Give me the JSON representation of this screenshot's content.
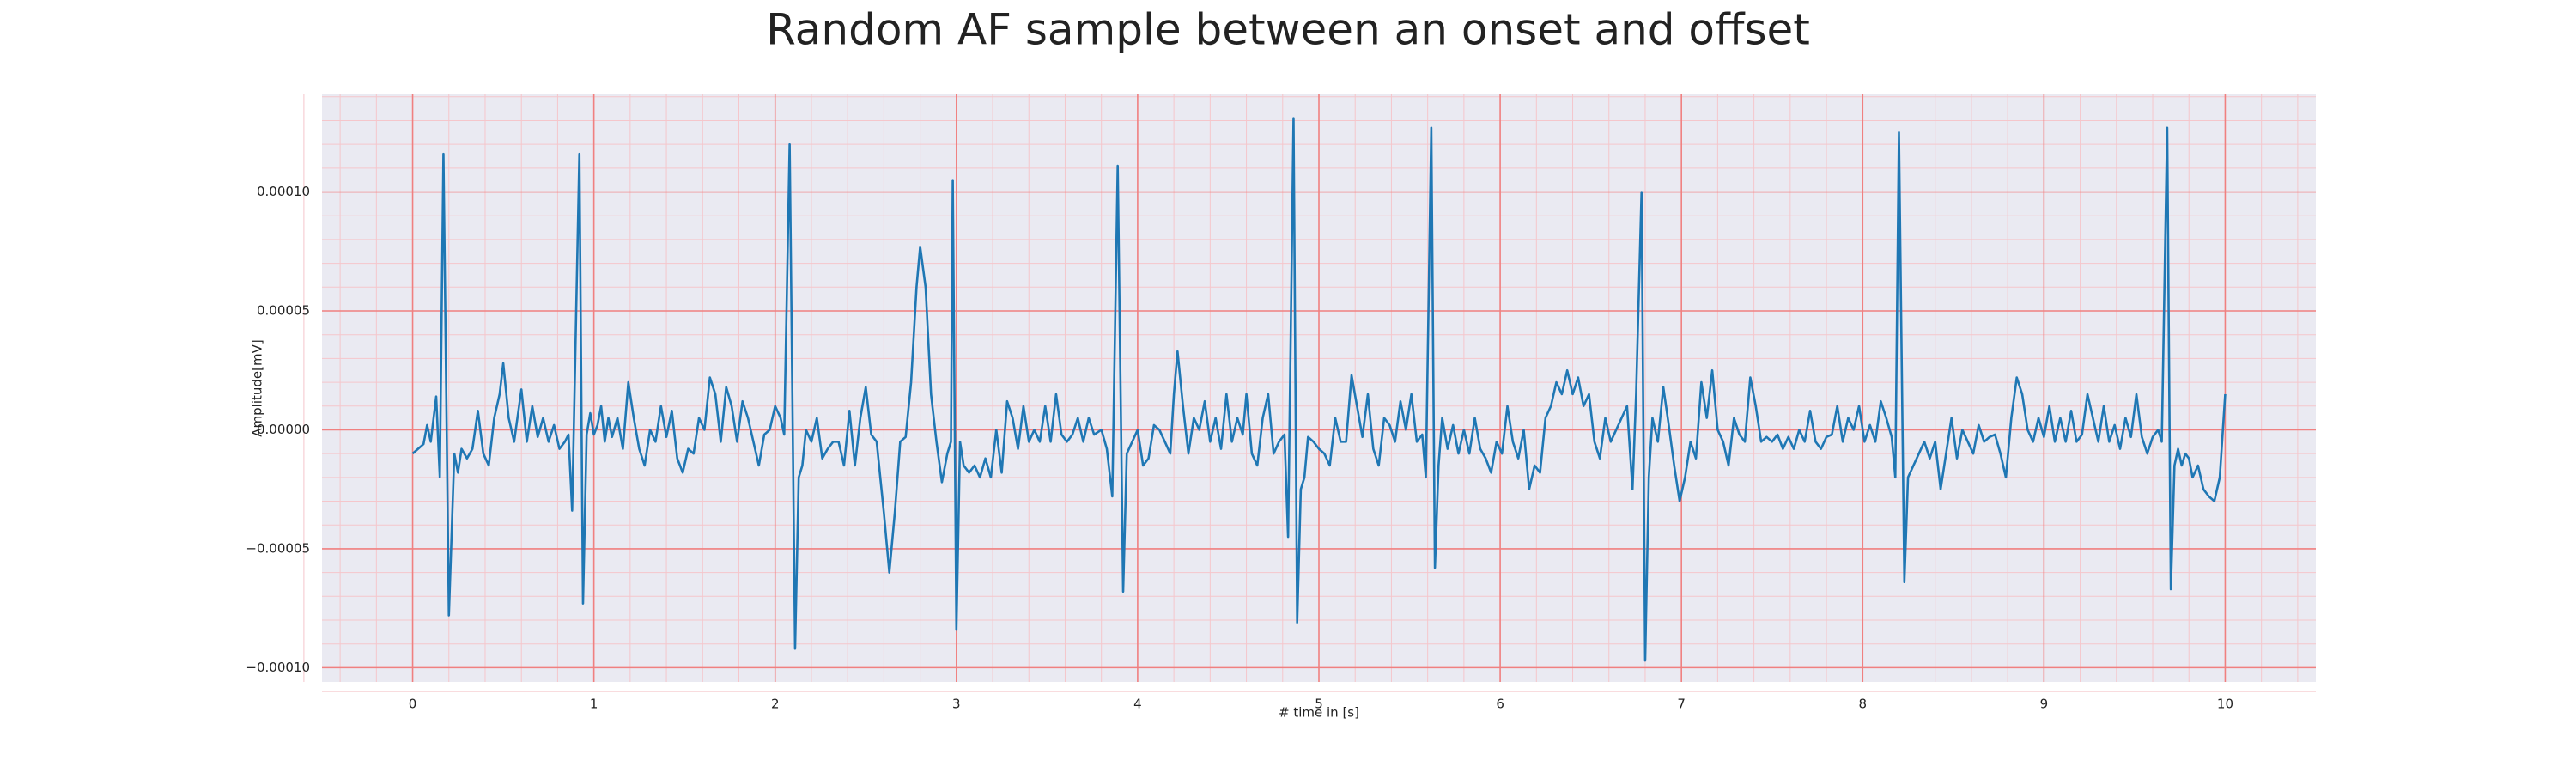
{
  "chart_data": {
    "type": "line",
    "title": "Random AF sample between an onset and offset",
    "x_label": "# time in [s]",
    "y_label": "Amplitude[mV]",
    "grid": true,
    "xlim": [
      -0.5,
      10.5
    ],
    "xticks": [
      0,
      1,
      2,
      3,
      4,
      5,
      6,
      7,
      8,
      9,
      10
    ],
    "ylim": [
      -0.000106,
      0.000141
    ],
    "yticks": [
      {
        "value": -0.0001,
        "label": "−0.00010"
      },
      {
        "value": -5e-05,
        "label": "−0.00005"
      },
      {
        "value": 0,
        "label": "0.00000"
      },
      {
        "value": 5e-05,
        "label": "0.00005"
      },
      {
        "value": 0.0001,
        "label": "0.00010"
      }
    ],
    "x": [
      0,
      0.03,
      0.06,
      0.08,
      0.1,
      0.13,
      0.15,
      0.17,
      0.2,
      0.23,
      0.25,
      0.27,
      0.3,
      0.33,
      0.36,
      0.39,
      0.42,
      0.45,
      0.48,
      0.5,
      0.53,
      0.56,
      0.6,
      0.63,
      0.66,
      0.69,
      0.72,
      0.75,
      0.78,
      0.81,
      0.84,
      0.86,
      0.88,
      0.92,
      0.94,
      0.96,
      0.98,
      1.0,
      1.02,
      1.04,
      1.06,
      1.08,
      1.1,
      1.13,
      1.16,
      1.19,
      1.22,
      1.25,
      1.28,
      1.31,
      1.34,
      1.37,
      1.4,
      1.43,
      1.46,
      1.49,
      1.52,
      1.55,
      1.58,
      1.61,
      1.64,
      1.67,
      1.7,
      1.73,
      1.76,
      1.79,
      1.82,
      1.85,
      1.88,
      1.91,
      1.94,
      1.97,
      2.0,
      2.03,
      2.05,
      2.08,
      2.11,
      2.13,
      2.15,
      2.17,
      2.2,
      2.23,
      2.26,
      2.29,
      2.32,
      2.35,
      2.38,
      2.41,
      2.44,
      2.47,
      2.5,
      2.53,
      2.56,
      2.6,
      2.63,
      2.66,
      2.69,
      2.72,
      2.75,
      2.78,
      2.8,
      2.83,
      2.86,
      2.89,
      2.92,
      2.95,
      2.97,
      2.98,
      3.0,
      3.02,
      3.04,
      3.07,
      3.1,
      3.13,
      3.16,
      3.19,
      3.22,
      3.25,
      3.28,
      3.31,
      3.34,
      3.37,
      3.4,
      3.43,
      3.46,
      3.49,
      3.52,
      3.55,
      3.58,
      3.61,
      3.64,
      3.67,
      3.7,
      3.73,
      3.76,
      3.8,
      3.83,
      3.86,
      3.89,
      3.92,
      3.94,
      3.97,
      4.0,
      4.03,
      4.06,
      4.09,
      4.12,
      4.15,
      4.18,
      4.2,
      4.22,
      4.25,
      4.28,
      4.31,
      4.34,
      4.37,
      4.4,
      4.43,
      4.46,
      4.49,
      4.52,
      4.55,
      4.58,
      4.6,
      4.63,
      4.66,
      4.69,
      4.72,
      4.75,
      4.78,
      4.81,
      4.83,
      4.86,
      4.88,
      4.9,
      4.92,
      4.94,
      4.97,
      5.0,
      5.03,
      5.06,
      5.09,
      5.12,
      5.15,
      5.18,
      5.21,
      5.24,
      5.27,
      5.3,
      5.33,
      5.36,
      5.39,
      5.42,
      5.45,
      5.48,
      5.51,
      5.54,
      5.57,
      5.59,
      5.62,
      5.64,
      5.66,
      5.68,
      5.71,
      5.74,
      5.77,
      5.8,
      5.83,
      5.86,
      5.89,
      5.92,
      5.95,
      5.98,
      6.01,
      6.04,
      6.07,
      6.1,
      6.13,
      6.16,
      6.19,
      6.22,
      6.25,
      6.28,
      6.31,
      6.34,
      6.37,
      6.4,
      6.43,
      6.46,
      6.49,
      6.52,
      6.55,
      6.58,
      6.61,
      6.64,
      6.67,
      6.7,
      6.73,
      6.75,
      6.78,
      6.8,
      6.82,
      6.84,
      6.87,
      6.9,
      6.93,
      6.96,
      6.99,
      7.02,
      7.05,
      7.08,
      7.11,
      7.14,
      7.17,
      7.2,
      7.23,
      7.26,
      7.29,
      7.32,
      7.35,
      7.38,
      7.41,
      7.44,
      7.47,
      7.5,
      7.53,
      7.56,
      7.59,
      7.62,
      7.65,
      7.68,
      7.71,
      7.74,
      7.77,
      7.8,
      7.83,
      7.86,
      7.89,
      7.92,
      7.95,
      7.98,
      8.01,
      8.04,
      8.07,
      8.1,
      8.13,
      8.16,
      8.18,
      8.2,
      8.23,
      8.25,
      8.28,
      8.31,
      8.34,
      8.37,
      8.4,
      8.43,
      8.46,
      8.49,
      8.52,
      8.55,
      8.58,
      8.61,
      8.64,
      8.67,
      8.7,
      8.73,
      8.76,
      8.79,
      8.82,
      8.85,
      8.88,
      8.91,
      8.94,
      8.97,
      9.0,
      9.03,
      9.06,
      9.09,
      9.12,
      9.15,
      9.18,
      9.21,
      9.24,
      9.27,
      9.3,
      9.33,
      9.36,
      9.39,
      9.42,
      9.45,
      9.48,
      9.51,
      9.54,
      9.57,
      9.6,
      9.63,
      9.65,
      9.68,
      9.7,
      9.72,
      9.74,
      9.76,
      9.78,
      9.8,
      9.82,
      9.85,
      9.88,
      9.91,
      9.94,
      9.97,
      10.0
    ],
    "series": [
      {
        "color": "#1f77b4",
        "values": [
          -1e-05,
          -8e-06,
          -6e-06,
          2e-06,
          -5e-06,
          1.4e-05,
          -2e-05,
          0.000116,
          -7.8e-05,
          -1e-05,
          -1.8e-05,
          -8e-06,
          -1.2e-05,
          -8e-06,
          8e-06,
          -1e-05,
          -1.5e-05,
          5e-06,
          1.5e-05,
          2.8e-05,
          5e-06,
          -5e-06,
          1.7e-05,
          -5e-06,
          1e-05,
          -3e-06,
          5e-06,
          -5e-06,
          2e-06,
          -8e-06,
          -5e-06,
          -2e-06,
          -3.4e-05,
          0.000116,
          -7.3e-05,
          -2e-06,
          7e-06,
          -2e-06,
          2e-06,
          1e-05,
          -5e-06,
          5e-06,
          -3e-06,
          5e-06,
          -8e-06,
          2e-05,
          5e-06,
          -8e-06,
          -1.5e-05,
          0,
          -5e-06,
          1e-05,
          -3e-06,
          8e-06,
          -1.2e-05,
          -1.8e-05,
          -8e-06,
          -1e-05,
          5e-06,
          0,
          2.2e-05,
          1.5e-05,
          -5e-06,
          1.8e-05,
          1e-05,
          -5e-06,
          1.2e-05,
          5e-06,
          -5e-06,
          -1.5e-05,
          -2e-06,
          0,
          1e-05,
          5e-06,
          -2e-06,
          0.00012,
          -9.2e-05,
          -2e-05,
          -1.5e-05,
          0,
          -5e-06,
          5e-06,
          -1.2e-05,
          -8e-06,
          -5e-06,
          -5e-06,
          -1.5e-05,
          8e-06,
          -1.5e-05,
          5e-06,
          1.8e-05,
          -2e-06,
          -5e-06,
          -3.5e-05,
          -6e-05,
          -3.5e-05,
          -5e-06,
          -3e-06,
          2e-05,
          6e-05,
          7.7e-05,
          6e-05,
          1.5e-05,
          -5e-06,
          -2.2e-05,
          -1e-05,
          -5e-06,
          0.000105,
          -8.4e-05,
          -5e-06,
          -1.5e-05,
          -1.8e-05,
          -1.5e-05,
          -2e-05,
          -1.2e-05,
          -2e-05,
          0,
          -1.8e-05,
          1.2e-05,
          5e-06,
          -8e-06,
          1e-05,
          -5e-06,
          0,
          -5e-06,
          1e-05,
          -5e-06,
          1.5e-05,
          -2e-06,
          -5e-06,
          -2e-06,
          5e-06,
          -5e-06,
          5e-06,
          -2e-06,
          0,
          -8e-06,
          -2.8e-05,
          0.000111,
          -6.8e-05,
          -1e-05,
          -5e-06,
          0,
          -1.5e-05,
          -1.2e-05,
          2e-06,
          0,
          -5e-06,
          -1e-05,
          1.5e-05,
          3.3e-05,
          1e-05,
          -1e-05,
          5e-06,
          0,
          1.2e-05,
          -5e-06,
          5e-06,
          -8e-06,
          1.5e-05,
          -5e-06,
          5e-06,
          -2e-06,
          1.5e-05,
          -1e-05,
          -1.5e-05,
          5e-06,
          1.5e-05,
          -1e-05,
          -5e-06,
          -2e-06,
          -4.5e-05,
          0.000131,
          -8.1e-05,
          -2.5e-05,
          -2e-05,
          -3e-06,
          -5e-06,
          -8e-06,
          -1e-05,
          -1.5e-05,
          5e-06,
          -5e-06,
          -5e-06,
          2.3e-05,
          1e-05,
          -3e-06,
          1.5e-05,
          -8e-06,
          -1.5e-05,
          5e-06,
          2e-06,
          -5e-06,
          1.2e-05,
          0,
          1.5e-05,
          -5e-06,
          -2e-06,
          -2e-05,
          0.000127,
          -5.8e-05,
          -1.5e-05,
          5e-06,
          -8e-06,
          2e-06,
          -1e-05,
          0,
          -1e-05,
          5e-06,
          -8e-06,
          -1.2e-05,
          -1.8e-05,
          -5e-06,
          -1e-05,
          1e-05,
          -5e-06,
          -1.2e-05,
          0,
          -2.5e-05,
          -1.5e-05,
          -1.8e-05,
          5e-06,
          1e-05,
          2e-05,
          1.5e-05,
          2.5e-05,
          1.5e-05,
          2.2e-05,
          1e-05,
          1.5e-05,
          -5e-06,
          -1.2e-05,
          5e-06,
          -5e-06,
          0,
          5e-06,
          1e-05,
          -2.5e-05,
          1.5e-05,
          0.0001,
          -9.7e-05,
          -2e-05,
          5e-06,
          -5e-06,
          1.8e-05,
          2e-06,
          -1.5e-05,
          -3e-05,
          -2e-05,
          -5e-06,
          -1.2e-05,
          2e-05,
          5e-06,
          2.5e-05,
          0,
          -5e-06,
          -1.5e-05,
          5e-06,
          -2e-06,
          -5e-06,
          2.2e-05,
          1e-05,
          -5e-06,
          -3e-06,
          -5e-06,
          -2e-06,
          -8e-06,
          -3e-06,
          -8e-06,
          0,
          -5e-06,
          8e-06,
          -5e-06,
          -8e-06,
          -3e-06,
          -2e-06,
          1e-05,
          -5e-06,
          5e-06,
          0,
          1e-05,
          -5e-06,
          2e-06,
          -5e-06,
          1.2e-05,
          5e-06,
          -3e-06,
          -2e-05,
          0.000125,
          -6.4e-05,
          -2e-05,
          -1.5e-05,
          -1e-05,
          -5e-06,
          -1.2e-05,
          -5e-06,
          -2.5e-05,
          -1e-05,
          5e-06,
          -1.2e-05,
          0,
          -5e-06,
          -1e-05,
          2e-06,
          -5e-06,
          -3e-06,
          -2e-06,
          -1e-05,
          -2e-05,
          5e-06,
          2.2e-05,
          1.5e-05,
          0,
          -5e-06,
          5e-06,
          -3e-06,
          1e-05,
          -5e-06,
          5e-06,
          -5e-06,
          8e-06,
          -5e-06,
          -2e-06,
          1.5e-05,
          5e-06,
          -5e-06,
          1e-05,
          -5e-06,
          2e-06,
          -8e-06,
          5e-06,
          -3e-06,
          1.5e-05,
          -3e-06,
          -1e-05,
          -3e-06,
          0,
          -5e-06,
          0.000127,
          -6.7e-05,
          -1.5e-05,
          -8e-06,
          -1.5e-05,
          -1e-05,
          -1.2e-05,
          -2e-05,
          -1.5e-05,
          -2.5e-05,
          -2.8e-05,
          -3e-05,
          -2e-05,
          1.5e-05
        ]
      }
    ]
  }
}
